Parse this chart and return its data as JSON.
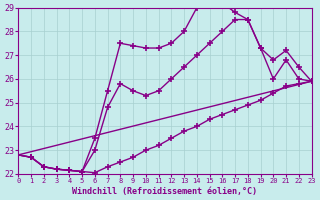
{
  "xlabel": "Windchill (Refroidissement éolien,°C)",
  "xlim": [
    0,
    23
  ],
  "ylim": [
    22,
    29
  ],
  "yticks": [
    22,
    23,
    24,
    25,
    26,
    27,
    28,
    29
  ],
  "xticks": [
    0,
    1,
    2,
    3,
    4,
    5,
    6,
    7,
    8,
    9,
    10,
    11,
    12,
    13,
    14,
    15,
    16,
    17,
    18,
    19,
    20,
    21,
    22,
    23
  ],
  "bg_color": "#c8ecec",
  "grid_color": "#a8d0d0",
  "line_color": "#880088",
  "line_width": 1.0,
  "marker": "+",
  "marker_size": 4,
  "lines": [
    {
      "x": [
        0,
        1,
        2,
        3,
        4,
        5,
        6,
        7,
        8,
        9,
        10,
        11,
        12,
        13,
        14,
        15,
        16,
        17,
        18,
        19,
        20,
        21,
        22,
        23
      ],
      "y": [
        22.8,
        22.7,
        22.3,
        22.2,
        22.15,
        22.1,
        23.5,
        25.5,
        27.5,
        27.4,
        27.3,
        27.3,
        27.5,
        28.0,
        29.0,
        29.2,
        29.2,
        28.8,
        28.5,
        27.3,
        26.0,
        26.8,
        26.0,
        25.9
      ]
    },
    {
      "x": [
        0,
        1,
        2,
        3,
        4,
        5,
        6,
        7,
        8,
        9,
        10,
        11,
        12,
        13,
        14,
        15,
        16,
        17,
        18,
        19,
        20,
        21,
        22,
        23
      ],
      "y": [
        22.8,
        22.7,
        22.3,
        22.2,
        22.15,
        22.1,
        23.0,
        24.8,
        25.8,
        25.5,
        25.3,
        25.5,
        26.0,
        26.5,
        27.0,
        27.5,
        28.0,
        28.5,
        28.5,
        27.3,
        26.8,
        27.2,
        26.5,
        25.9
      ]
    },
    {
      "x": [
        0,
        23
      ],
      "y": [
        22.8,
        25.9
      ]
    },
    {
      "x": [
        0,
        1,
        2,
        3,
        4,
        5,
        6,
        7,
        8,
        9,
        10,
        11,
        12,
        13,
        14,
        15,
        16,
        17,
        18,
        19,
        20,
        21,
        22,
        23
      ],
      "y": [
        22.8,
        22.7,
        22.3,
        22.2,
        22.15,
        22.1,
        22.05,
        22.3,
        22.5,
        22.7,
        23.0,
        23.2,
        23.5,
        23.8,
        24.0,
        24.3,
        24.5,
        24.7,
        24.9,
        25.1,
        25.4,
        25.7,
        25.8,
        25.9
      ]
    }
  ]
}
